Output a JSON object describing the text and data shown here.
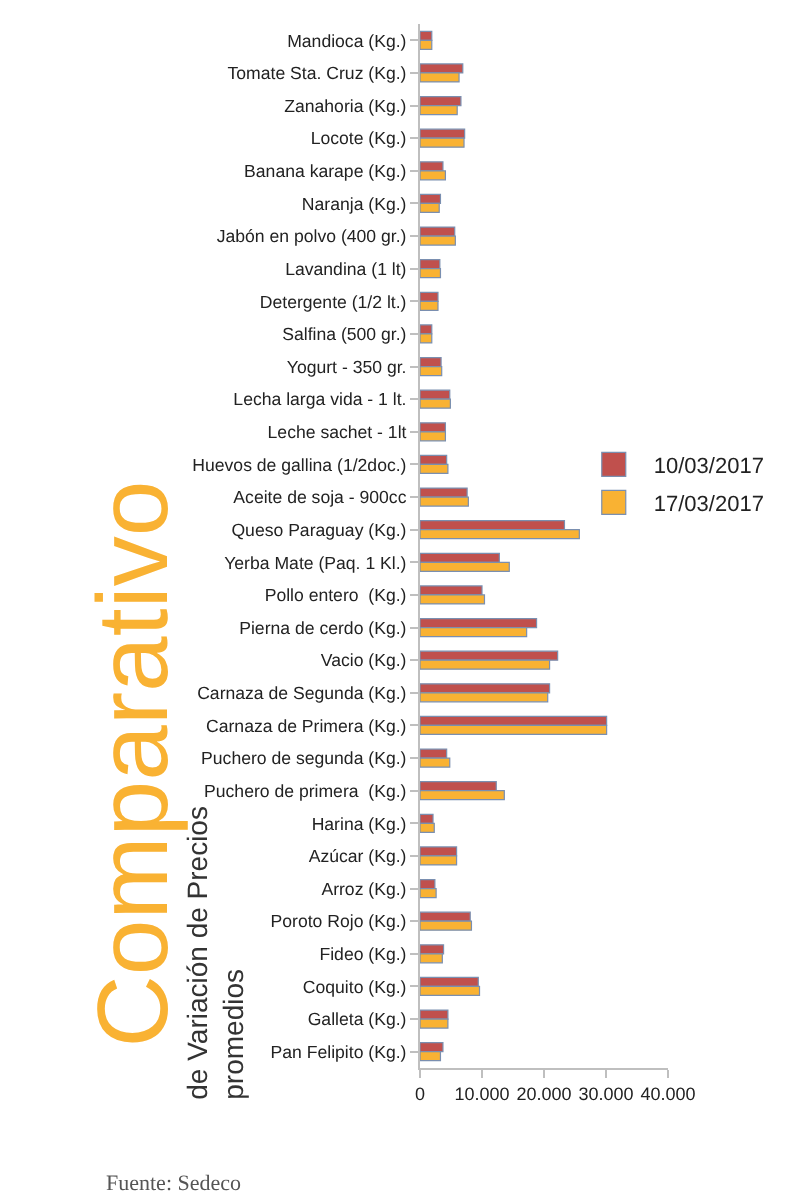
{
  "chart_data": {
    "type": "bar",
    "orientation": "horizontal",
    "title": "Comparativo",
    "subtitle": "de Variación de Precios\npromedios",
    "categories": [
      "Mandioca (Kg.)",
      "Tomate Sta. Cruz (Kg.)",
      "Zanahoria (Kg.)",
      "Locote (Kg.)",
      "Banana karape (Kg.)",
      "Naranja (Kg.)",
      "Jabón en polvo (400 gr.)",
      "Lavandina (1 lt)",
      "Detergente (1/2 lt.)",
      "Salfina (500 gr.)",
      "Yogurt - 350 gr.",
      "Lecha larga vida - 1 lt.",
      "Leche sachet - 1lt",
      "Huevos de gallina (1/2doc.)",
      "Aceite de soja - 900cc",
      "Queso Paraguay (Kg.)",
      "Yerba Mate (Paq. 1 Kl.)",
      "Pollo entero  (Kg.)",
      "Pierna de cerdo (Kg.)",
      "Vacio (Kg.)",
      "Carnaza de Segunda (Kg.)",
      "Carnaza de Primera (Kg.)",
      "Puchero de segunda (Kg.)",
      "Puchero de primera  (Kg.)",
      "Harina (Kg.)",
      "Azúcar (Kg.)",
      "Arroz (Kg.)",
      "Poroto Rojo (Kg.)",
      "Fideo (Kg.)",
      "Coquito (Kg.)",
      "Galleta (Kg.)",
      "Pan Felipito (Kg.)"
    ],
    "series": [
      {
        "name": "10/03/2017",
        "color": "#c0504d",
        "values": [
          1900,
          6900,
          6600,
          7200,
          3700,
          3300,
          5600,
          3200,
          2900,
          1900,
          3400,
          4800,
          4100,
          4300,
          7600,
          23300,
          12800,
          10000,
          18800,
          22200,
          20900,
          30100,
          4300,
          12300,
          2100,
          5900,
          2400,
          8100,
          3800,
          9400,
          4500,
          3700
        ]
      },
      {
        "name": "17/03/2017",
        "color": "#f9b233",
        "values": [
          1900,
          6300,
          6000,
          7100,
          4100,
          3100,
          5700,
          3300,
          2900,
          1900,
          3500,
          4900,
          4100,
          4500,
          7800,
          25700,
          14400,
          10400,
          17200,
          20900,
          20600,
          30100,
          4800,
          13600,
          2300,
          5900,
          2600,
          8300,
          3600,
          9600,
          4500,
          3300
        ]
      }
    ],
    "xlim": [
      0,
      40000
    ],
    "xticks": [
      0,
      {
        "value": 10000,
        "label": "10.000"
      },
      {
        "value": 20000,
        "label": "20.000"
      },
      {
        "value": 30000,
        "label": "30.000"
      },
      {
        "value": 40000,
        "label": "40.000"
      }
    ],
    "grid": false,
    "legend": "right",
    "annotations": [
      "Fuente: Sedeco"
    ]
  }
}
